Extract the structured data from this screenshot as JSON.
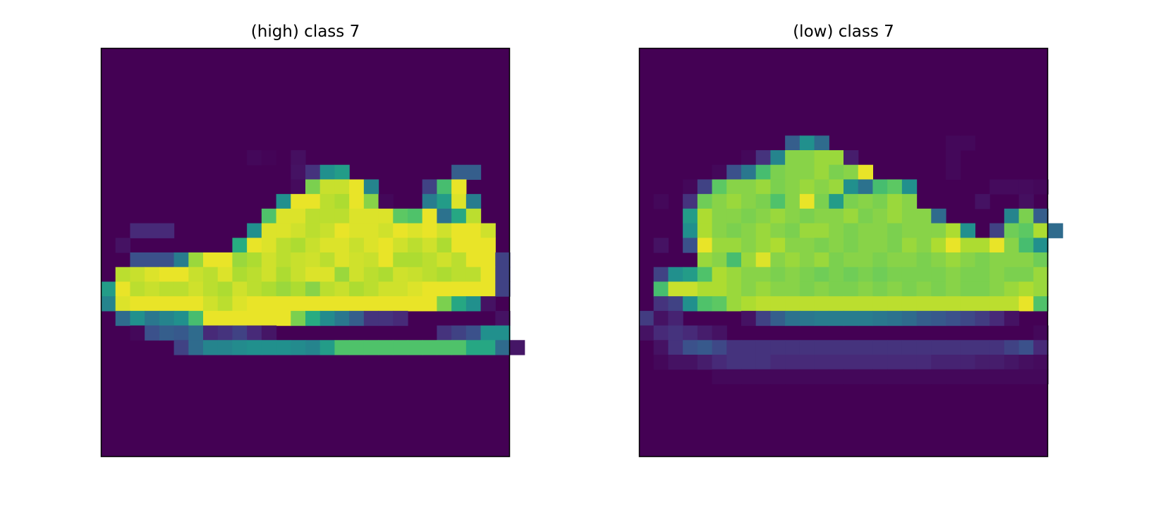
{
  "chart_data": [
    {
      "type": "heatmap",
      "title": "(high) class 7",
      "colormap": "viridis",
      "value_range": [
        0,
        1
      ],
      "axes_ticks": "off",
      "rows": 28,
      "cols": 28,
      "sparse_rows": [
        {
          "row": 7,
          "start": 10,
          "values": [
            0.02,
            0.01,
            0,
            0.04
          ]
        },
        {
          "row": 8,
          "start": 13,
          "values": [
            0.05,
            0.15,
            0.5,
            0.55,
            0.0,
            0,
            0,
            0,
            0,
            0,
            0,
            0.3,
            0.3
          ]
        },
        {
          "row": 9,
          "start": 13,
          "values": [
            0.03,
            0.8,
            0.92,
            0.92,
            0.97,
            0.45,
            0,
            0,
            0,
            0.2,
            0.7,
            0.97
          ]
        },
        {
          "row": 10,
          "start": 12,
          "values": [
            0.5,
            0.97,
            0.97,
            0.9,
            0.88,
            0.97,
            0.82,
            0.02,
            0,
            0,
            0.42,
            0.55,
            0.95,
            0.42
          ]
        },
        {
          "row": 11,
          "start": 11,
          "values": [
            0.72,
            0.95,
            0.95,
            0.9,
            0.9,
            0.9,
            0.95,
            0.95,
            0.95,
            0.75,
            0.72,
            0.97,
            0.38,
            0.6,
            0.9
          ]
        },
        {
          "row": 12,
          "start": 2,
          "values": [
            0.12,
            0.12,
            0.12,
            0,
            0,
            0,
            0,
            0,
            0.5,
            0.95,
            0.95,
            0.93,
            0.9,
            0.92,
            0.97,
            0.95,
            0.95,
            0.93,
            0.97,
            0.95,
            0.97,
            0.93,
            0.97,
            0.97,
            0.93
          ]
        },
        {
          "row": 13,
          "start": 1,
          "values": [
            0.05,
            0,
            0,
            0,
            0,
            0,
            0,
            0,
            0.62,
            0.97,
            0.95,
            0.9,
            0.88,
            0.92,
            0.95,
            0.95,
            0.92,
            0.95,
            0.97,
            0.93,
            0.9,
            0.93,
            0.88,
            0.97,
            0.97,
            0.97
          ]
        },
        {
          "row": 14,
          "start": 1,
          "values": [
            0,
            0.25,
            0.25,
            0.25,
            0.42,
            0.85,
            0.97,
            0.97,
            0.85,
            0.88,
            0.93,
            0.9,
            0.92,
            0.93,
            0.9,
            0.95,
            0.93,
            0.92,
            0.97,
            0.88,
            0.88,
            0.9,
            0.93,
            0.9,
            0.97,
            0.97,
            0.2
          ]
        },
        {
          "row": 15,
          "start": 1,
          "values": [
            0.9,
            0.92,
            0.95,
            0.97,
            0.97,
            0.92,
            0.9,
            0.95,
            0.88,
            0.9,
            0.93,
            0.88,
            0.92,
            0.95,
            0.95,
            0.85,
            0.93,
            0.9,
            0.88,
            0.93,
            0.92,
            0.9,
            0.88,
            0.9,
            0.9,
            0.97,
            0.2
          ]
        },
        {
          "row": 16,
          "start": 0,
          "values": [
            0.55,
            0.97,
            0.9,
            0.92,
            0.9,
            0.9,
            0.93,
            0.9,
            0.88,
            0.93,
            0.9,
            0.88,
            0.85,
            0.88,
            0.82,
            0.9,
            0.92,
            0.88,
            0.9,
            0.93,
            0.93,
            0.95,
            0.97,
            0.97,
            0.97,
            0.97,
            0.97,
            0.2
          ]
        },
        {
          "row": 17,
          "start": 0,
          "values": [
            0.45,
            0.95,
            0.97,
            0.97,
            0.97,
            0.97,
            0.97,
            0.93,
            0.9,
            0.95,
            0.97,
            0.97,
            0.97,
            0.97,
            0.97,
            0.97,
            0.97,
            0.97,
            0.97,
            0.97,
            0.97,
            0.97,
            0.97,
            0.8,
            0.6,
            0.5,
            0.05
          ]
        },
        {
          "row": 18,
          "start": 1,
          "values": [
            0.35,
            0.5,
            0.4,
            0.45,
            0.5,
            0.7,
            0.97,
            0.97,
            0.97,
            0.97,
            0.97,
            0.97,
            0.8,
            0.62,
            0.48,
            0.4,
            0.3,
            0.15,
            0.15,
            0.12,
            0.0,
            0,
            0,
            0,
            0,
            0,
            0.05
          ]
        },
        {
          "row": 19,
          "start": 2,
          "values": [
            0.02,
            0.25,
            0.3,
            0.28,
            0.35,
            0.12,
            0.15,
            0.2,
            0.12,
            0.06,
            0,
            0,
            0,
            0,
            0,
            0,
            0,
            0,
            0,
            0,
            0,
            0.15,
            0.2,
            0.25,
            0.5,
            0.5
          ]
        },
        {
          "row": 20,
          "start": 5,
          "values": [
            0.2,
            0.35,
            0.45,
            0.45,
            0.48,
            0.5,
            0.5,
            0.5,
            0.48,
            0.45,
            0.55,
            0.72,
            0.72,
            0.72,
            0.72,
            0.72,
            0.72,
            0.72,
            0.72,
            0.72,
            0.6,
            0.6,
            0.35,
            0.06
          ]
        }
      ]
    },
    {
      "type": "heatmap",
      "title": "(low) class 7",
      "colormap": "viridis",
      "value_range": [
        0,
        1
      ],
      "axes_ticks": "off",
      "rows": 28,
      "cols": 28,
      "sparse_rows": [
        {
          "row": 6,
          "start": 10,
          "values": [
            0.3,
            0.5,
            0.35,
            0,
            0,
            0,
            0,
            0,
            0,
            0,
            0,
            0.02,
            0.02
          ]
        },
        {
          "row": 7,
          "start": 7,
          "values": [
            0.02,
            0.15,
            0.45,
            0.82,
            0.82,
            0.85,
            0.85,
            0.08,
            0,
            0,
            0,
            0,
            0,
            0,
            0.02
          ]
        },
        {
          "row": 8,
          "start": 5,
          "values": [
            0.02,
            0.25,
            0.4,
            0.7,
            0.8,
            0.82,
            0.82,
            0.85,
            0.8,
            0.82,
            0.97,
            0,
            0,
            0,
            0,
            0,
            0.02
          ]
        },
        {
          "row": 9,
          "start": 3,
          "values": [
            0.02,
            0.2,
            0.75,
            0.82,
            0.82,
            0.85,
            0.8,
            0.82,
            0.85,
            0.82,
            0.85,
            0.5,
            0.38,
            0.7,
            0.75,
            0.5,
            0,
            0,
            0,
            0,
            0,
            0.03,
            0.03,
            0.03,
            0.02
          ]
        },
        {
          "row": 10,
          "start": 1,
          "values": [
            0.02,
            0,
            0.15,
            0.78,
            0.82,
            0.85,
            0.82,
            0.8,
            0.72,
            0.82,
            0.97,
            0.8,
            0.55,
            0.8,
            0.82,
            0.8,
            0.85,
            0.82,
            0,
            0,
            0,
            0,
            0.05,
            0,
            0,
            0.04
          ]
        },
        {
          "row": 11,
          "start": 3,
          "values": [
            0.55,
            0.88,
            0.82,
            0.82,
            0.8,
            0.82,
            0.85,
            0.82,
            0.8,
            0.82,
            0.82,
            0.85,
            0.8,
            0.82,
            0.85,
            0.82,
            0.82,
            0.35,
            0,
            0,
            0,
            0,
            0.45,
            0.8,
            0.3
          ]
        },
        {
          "row": 12,
          "start": 3,
          "values": [
            0.5,
            0.88,
            0.82,
            0.8,
            0.82,
            0.85,
            0.82,
            0.8,
            0.85,
            0.85,
            0.82,
            0.8,
            0.82,
            0.82,
            0.8,
            0.82,
            0.82,
            0.82,
            0.88,
            0.5,
            0.0,
            0.2,
            0.78,
            0.75,
            0.88,
            0.35
          ]
        },
        {
          "row": 13,
          "start": 1,
          "values": [
            0.05,
            0,
            0.25,
            0.97,
            0.85,
            0.85,
            0.82,
            0.85,
            0.88,
            0.82,
            0.82,
            0.8,
            0.82,
            0.8,
            0.82,
            0.82,
            0.8,
            0.85,
            0.82,
            0.88,
            0.97,
            0.88,
            0.88,
            0.97,
            0.82,
            0.7,
            0.5
          ]
        },
        {
          "row": 14,
          "start": 4,
          "values": [
            0.85,
            0.82,
            0.7,
            0.85,
            0.95,
            0.82,
            0.85,
            0.82,
            0.85,
            0.8,
            0.82,
            0.82,
            0.8,
            0.82,
            0.82,
            0.8,
            0.82,
            0.85,
            0.82,
            0.8,
            0.82,
            0.82,
            0.82,
            0.78
          ]
        },
        {
          "row": 15,
          "start": 1,
          "values": [
            0.2,
            0.5,
            0.55,
            0.72,
            0.88,
            0.85,
            0.82,
            0.82,
            0.8,
            0.82,
            0.8,
            0.78,
            0.8,
            0.78,
            0.8,
            0.78,
            0.8,
            0.8,
            0.8,
            0.8,
            0.82,
            0.8,
            0.8,
            0.82,
            0.8,
            0.8,
            0.85
          ]
        },
        {
          "row": 16,
          "start": 1,
          "values": [
            0.7,
            0.92,
            0.92,
            0.88,
            0.88,
            0.85,
            0.82,
            0.85,
            0.82,
            0.82,
            0.8,
            0.82,
            0.8,
            0.8,
            0.82,
            0.8,
            0.82,
            0.8,
            0.82,
            0.8,
            0.82,
            0.8,
            0.8,
            0.82,
            0.85,
            0.88,
            0.85
          ]
        },
        {
          "row": 17,
          "start": 1,
          "values": [
            0.15,
            0.2,
            0.5,
            0.72,
            0.75,
            0.85,
            0.88,
            0.9,
            0.9,
            0.9,
            0.9,
            0.9,
            0.9,
            0.9,
            0.9,
            0.9,
            0.9,
            0.9,
            0.9,
            0.9,
            0.9,
            0.9,
            0.9,
            0.9,
            0.9,
            0.97,
            0.72
          ]
        },
        {
          "row": 18,
          "start": 0,
          "values": [
            0.18,
            0.05,
            0.1,
            0,
            0,
            0,
            0,
            0.05,
            0.2,
            0.3,
            0.38,
            0.4,
            0.42,
            0.42,
            0.42,
            0.42,
            0.4,
            0.38,
            0.35,
            0.3,
            0.28,
            0.25,
            0.22,
            0.18,
            0.12,
            0.05,
            0,
            0
          ]
        },
        {
          "row": 19,
          "start": 0,
          "values": [
            0.05,
            0.12,
            0.15,
            0.12,
            0.08,
            0.05,
            0,
            0,
            0,
            0,
            0,
            0,
            0,
            0,
            0,
            0,
            0,
            0,
            0,
            0,
            0,
            0,
            0,
            0,
            0,
            0,
            0,
            0.02
          ]
        },
        {
          "row": 20,
          "start": 1,
          "values": [
            0.05,
            0.15,
            0.25,
            0.28,
            0.22,
            0.15,
            0.15,
            0.15,
            0.15,
            0.15,
            0.15,
            0.15,
            0.15,
            0.15,
            0.15,
            0.15,
            0.15,
            0.15,
            0.15,
            0.15,
            0.15,
            0.15,
            0.15,
            0.15,
            0.2,
            0.25,
            0.12
          ]
        },
        {
          "row": 21,
          "start": 1,
          "values": [
            0.02,
            0.05,
            0.05,
            0.08,
            0.12,
            0.15,
            0.15,
            0.15,
            0.12,
            0.12,
            0.12,
            0.12,
            0.12,
            0.12,
            0.12,
            0.12,
            0.12,
            0.12,
            0.12,
            0.1,
            0.1,
            0.1,
            0.08,
            0.08,
            0.06,
            0.04,
            0.03
          ]
        },
        {
          "row": 22,
          "start": 5,
          "values": [
            0.02,
            0.02,
            0.02,
            0.02,
            0.02,
            0.02,
            0.02,
            0.02,
            0.02,
            0.02,
            0.02,
            0.02,
            0.02,
            0.02,
            0.02,
            0.02,
            0.02,
            0.02,
            0.02,
            0.02,
            0.02,
            0.02,
            0.02
          ]
        }
      ]
    }
  ]
}
